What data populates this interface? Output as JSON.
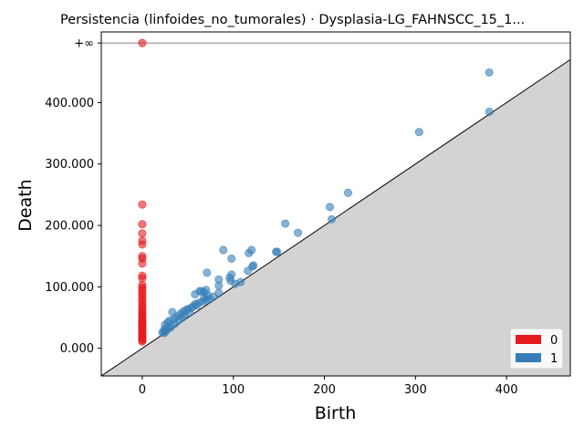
{
  "chart_data": {
    "type": "scatter",
    "title": "Persistencia (linfoides_no_tumorales) · Dysplasia-LG_FAHNSCC_15_1...",
    "xlabel": "Birth",
    "ylabel": "Death",
    "xlim": [
      -45,
      470
    ],
    "ylim": [
      -45,
      515
    ],
    "inf_value": 497,
    "inf_label": "+∞",
    "x_ticks": [
      {
        "value": 0,
        "label": "0"
      },
      {
        "value": 100,
        "label": "100"
      },
      {
        "value": 200,
        "label": "200"
      },
      {
        "value": 300,
        "label": "300"
      },
      {
        "value": 400,
        "label": "400"
      }
    ],
    "y_ticks": [
      {
        "value": 0,
        "label": "0.000"
      },
      {
        "value": 100,
        "label": "100.000"
      },
      {
        "value": 200,
        "label": "200.000"
      },
      {
        "value": 300,
        "label": "300.000"
      },
      {
        "value": 400,
        "label": "400.000"
      }
    ],
    "colors": {
      "H0": "#e41a1c",
      "H1": "#377eb8",
      "diagonal_fill": "#d3d3d3",
      "inf_line": "#808080"
    },
    "series": [
      {
        "name": "0",
        "color": "#e41a1c",
        "points": [
          [
            0,
            497
          ],
          [
            0,
            234
          ],
          [
            0,
            202
          ],
          [
            0,
            187
          ],
          [
            0,
            175
          ],
          [
            0,
            169
          ],
          [
            0,
            150
          ],
          [
            0,
            146
          ],
          [
            0,
            138
          ],
          [
            0,
            118
          ],
          [
            0,
            114
          ],
          [
            0,
            103
          ],
          [
            0,
            99
          ],
          [
            0,
            95
          ],
          [
            0,
            90
          ],
          [
            0,
            86
          ],
          [
            0,
            81
          ],
          [
            0,
            77
          ],
          [
            0,
            72
          ],
          [
            0,
            68
          ],
          [
            0,
            64
          ],
          [
            0,
            60
          ],
          [
            0,
            57
          ],
          [
            0,
            54
          ],
          [
            0,
            51
          ],
          [
            0,
            48
          ],
          [
            0,
            45
          ],
          [
            0,
            42
          ],
          [
            0,
            40
          ],
          [
            0,
            37
          ],
          [
            0,
            35
          ],
          [
            0,
            32
          ],
          [
            0,
            30
          ],
          [
            0,
            27
          ],
          [
            0,
            25
          ],
          [
            0,
            22
          ],
          [
            0,
            20
          ],
          [
            0,
            18
          ],
          [
            0,
            15
          ],
          [
            0,
            13
          ],
          [
            0,
            11
          ]
        ]
      },
      {
        "name": "1",
        "color": "#377eb8",
        "points": [
          [
            381,
            449
          ],
          [
            381,
            385
          ],
          [
            304,
            352
          ],
          [
            226,
            253
          ],
          [
            206,
            230
          ],
          [
            208,
            210
          ],
          [
            157,
            203
          ],
          [
            171,
            188
          ],
          [
            120,
            160
          ],
          [
            89,
            160
          ],
          [
            117,
            155
          ],
          [
            147,
            157
          ],
          [
            148,
            157
          ],
          [
            98,
            146
          ],
          [
            122,
            135
          ],
          [
            121,
            133
          ],
          [
            116,
            126
          ],
          [
            71,
            123
          ],
          [
            98,
            120
          ],
          [
            96,
            115
          ],
          [
            84,
            112
          ],
          [
            97,
            110
          ],
          [
            108,
            108
          ],
          [
            102,
            105
          ],
          [
            84,
            102
          ],
          [
            58,
            88
          ],
          [
            70,
            95
          ],
          [
            65,
            93
          ],
          [
            63,
            93
          ],
          [
            68,
            91
          ],
          [
            84,
            90
          ],
          [
            72,
            86
          ],
          [
            78,
            84
          ],
          [
            68,
            82
          ],
          [
            74,
            80
          ],
          [
            70,
            78
          ],
          [
            66,
            76
          ],
          [
            62,
            74
          ],
          [
            58,
            72
          ],
          [
            60,
            70
          ],
          [
            56,
            68
          ],
          [
            54,
            66
          ],
          [
            50,
            64
          ],
          [
            48,
            62
          ],
          [
            45,
            60
          ],
          [
            33,
            59
          ],
          [
            52,
            58
          ],
          [
            42,
            56
          ],
          [
            46,
            54
          ],
          [
            38,
            52
          ],
          [
            44,
            50
          ],
          [
            35,
            48
          ],
          [
            40,
            46
          ],
          [
            30,
            45
          ],
          [
            28,
            42
          ],
          [
            36,
            40
          ],
          [
            25,
            38
          ],
          [
            32,
            36
          ],
          [
            27,
            34
          ],
          [
            30,
            33
          ],
          [
            24,
            30
          ],
          [
            26,
            28
          ],
          [
            22,
            26
          ],
          [
            24,
            25
          ]
        ]
      }
    ],
    "legend": {
      "position": "bottom-right",
      "entries": [
        {
          "label": "0",
          "color": "#e41a1c"
        },
        {
          "label": "1",
          "color": "#377eb8"
        }
      ]
    }
  }
}
